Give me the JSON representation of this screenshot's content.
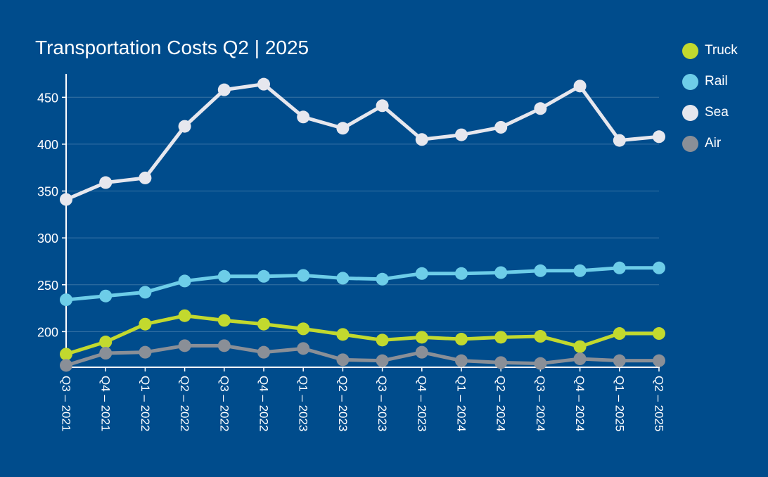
{
  "chart_data": {
    "type": "line",
    "title": "Transportation Costs Q2 | 2025",
    "categories": [
      "Q3 – 2021",
      "Q4 – 2021",
      "Q1 – 2022",
      "Q2 – 2022",
      "Q3 – 2022",
      "Q4 – 2022",
      "Q1 – 2023",
      "Q2 – 2023",
      "Q3 – 2023",
      "Q4 – 2023",
      "Q1 – 2024",
      "Q2 – 2024",
      "Q3 – 2024",
      "Q4 – 2024",
      "Q1 – 2025",
      "Q2 – 2025"
    ],
    "yticks": [
      200,
      250,
      300,
      350,
      400,
      450
    ],
    "ylim": [
      162,
      475
    ],
    "grid": true,
    "legend_position": "top-right",
    "series": [
      {
        "name": "Truck",
        "color": "#c2d92e",
        "values": [
          176,
          189,
          208,
          217,
          212,
          208,
          203,
          197,
          191,
          194,
          192,
          194,
          195,
          184,
          198,
          198
        ]
      },
      {
        "name": "Rail",
        "color": "#6dcde8",
        "values": [
          234,
          238,
          242,
          254,
          259,
          259,
          260,
          257,
          256,
          262,
          262,
          263,
          265,
          265,
          268,
          268
        ]
      },
      {
        "name": "Sea",
        "color": "#e6e7ee",
        "values": [
          341,
          359,
          364,
          419,
          458,
          464,
          429,
          417,
          441,
          405,
          410,
          418,
          438,
          462,
          404,
          408
        ]
      },
      {
        "name": "Air",
        "color": "#8a8f97",
        "values": [
          164,
          177,
          178,
          185,
          185,
          178,
          182,
          170,
          169,
          178,
          169,
          167,
          166,
          171,
          169,
          169
        ]
      }
    ]
  }
}
